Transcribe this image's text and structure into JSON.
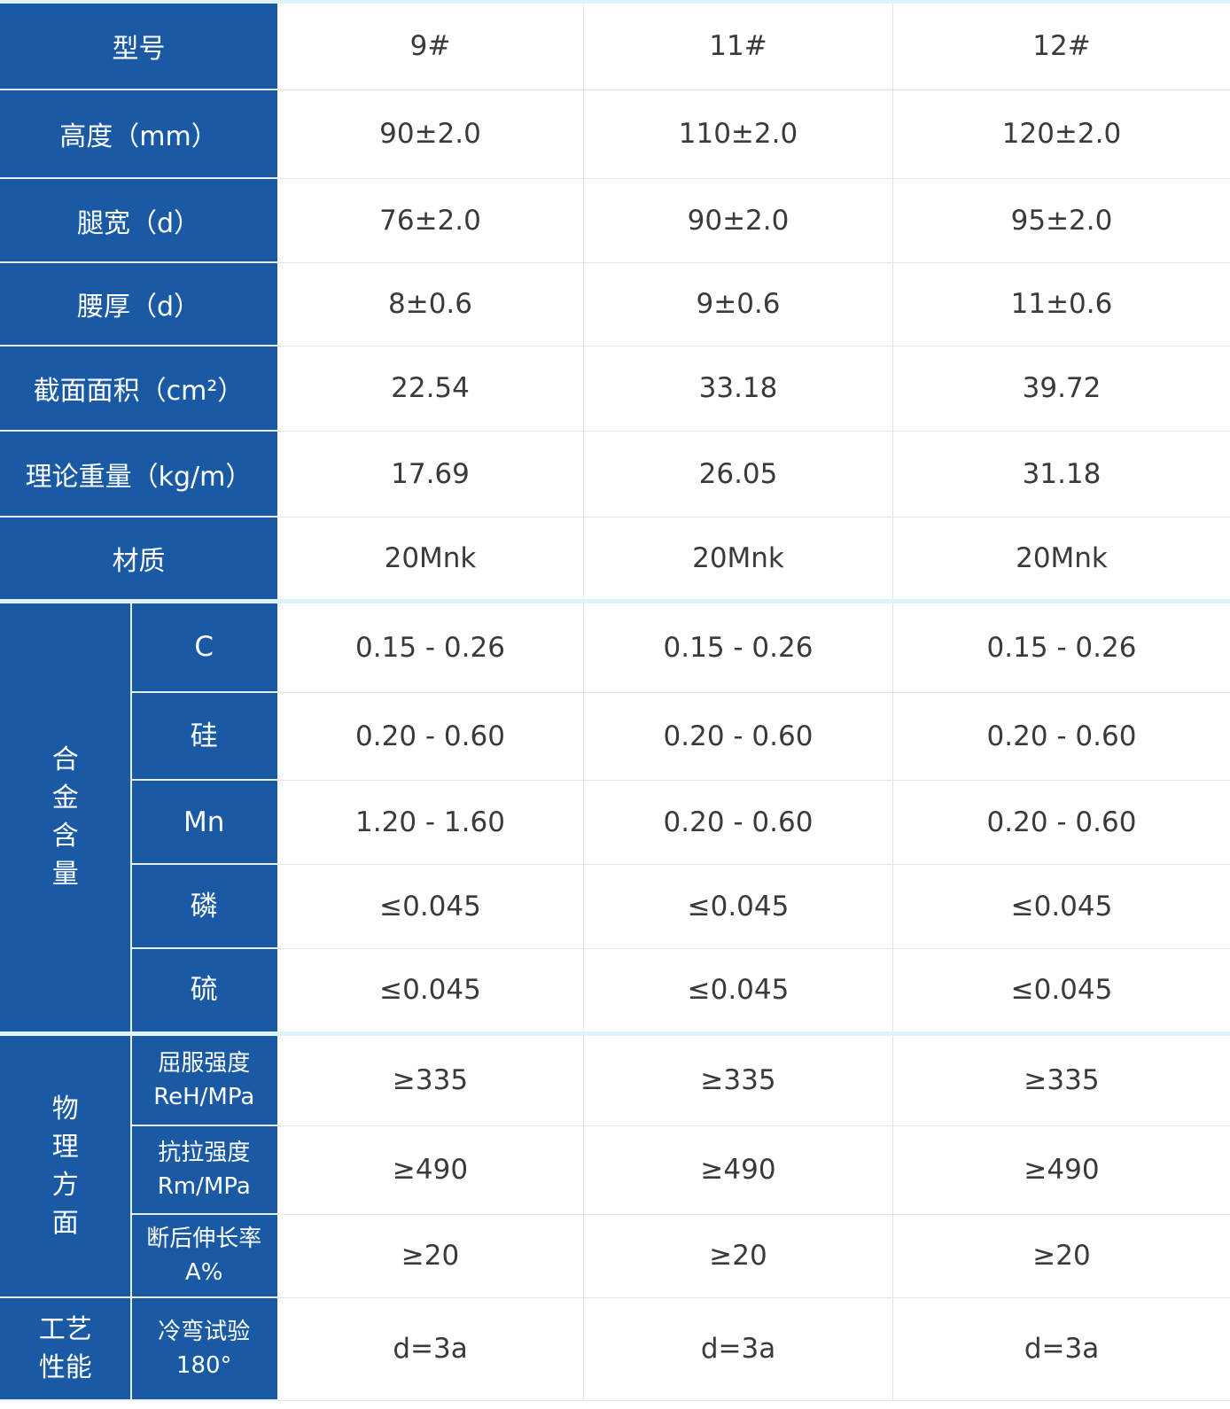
{
  "header": {
    "label": "型号",
    "models": [
      "9#",
      "11#",
      "12#"
    ]
  },
  "basic_rows": [
    {
      "label": "高度（mm）",
      "values": [
        "90±2.0",
        "110±2.0",
        "120±2.0"
      ]
    },
    {
      "label": "腿宽（d）",
      "values": [
        "76±2.0",
        "90±2.0",
        "95±2.0"
      ]
    },
    {
      "label": "腰厚（d）",
      "values": [
        "8±0.6",
        "9±0.6",
        "11±0.6"
      ]
    },
    {
      "label": "截面面积（cm²）",
      "values": [
        "22.54",
        "33.18",
        "39.72"
      ]
    },
    {
      "label": "理论重量（kg/m）",
      "values": [
        "17.69",
        "26.05",
        "31.18"
      ]
    },
    {
      "label": "材质",
      "values": [
        "20Mnk",
        "20Mnk",
        "20Mnk"
      ]
    }
  ],
  "alloy": {
    "group": "合金含量",
    "rows": [
      {
        "label": "C",
        "values": [
          "0.15 - 0.26",
          "0.15 - 0.26",
          "0.15 - 0.26"
        ]
      },
      {
        "label": "硅",
        "values": [
          "0.20 - 0.60",
          "0.20 - 0.60",
          "0.20 - 0.60"
        ]
      },
      {
        "label": "Mn",
        "values": [
          "1.20 - 1.60",
          "0.20 - 0.60",
          "0.20 - 0.60"
        ]
      },
      {
        "label": "磷",
        "values": [
          "≤0.045",
          "≤0.045",
          "≤0.045"
        ]
      },
      {
        "label": "硫",
        "values": [
          "≤0.045",
          "≤0.045",
          "≤0.045"
        ]
      }
    ]
  },
  "physical": {
    "group": "物理方面",
    "rows": [
      {
        "label": "屈服强度",
        "unit": "ReH/MPa",
        "values": [
          "≥335",
          "≥335",
          "≥335"
        ]
      },
      {
        "label": "抗拉强度",
        "unit": "Rm/MPa",
        "values": [
          "≥490",
          "≥490",
          "≥490"
        ]
      },
      {
        "label": "断后伸长率",
        "unit": "A%",
        "values": [
          "≥20",
          "≥20",
          "≥20"
        ]
      }
    ]
  },
  "process": {
    "group": "工艺性能",
    "label": "冷弯试验",
    "unit": "180°",
    "values": [
      "d=3a",
      "d=3a",
      "d=3a"
    ]
  },
  "colors": {
    "header_blue": "#1a5aa5",
    "separator": "#dff3fb"
  }
}
